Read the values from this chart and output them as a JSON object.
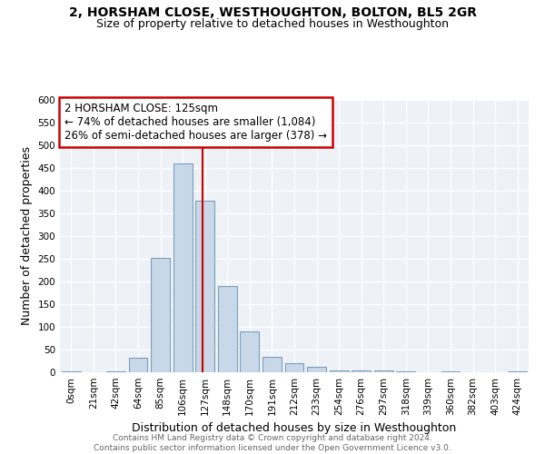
{
  "title": "2, HORSHAM CLOSE, WESTHOUGHTON, BOLTON, BL5 2GR",
  "subtitle": "Size of property relative to detached houses in Westhoughton",
  "xlabel": "Distribution of detached houses by size in Westhoughton",
  "ylabel": "Number of detached properties",
  "footnote1": "Contains HM Land Registry data © Crown copyright and database right 2024.",
  "footnote2": "Contains public sector information licensed under the Open Government Licence v3.0.",
  "annotation_line1": "2 HORSHAM CLOSE: 125sqm",
  "annotation_line2": "← 74% of detached houses are smaller (1,084)",
  "annotation_line3": "26% of semi-detached houses are larger (378) →",
  "bar_color": "#c8d8e8",
  "bar_edge_color": "#7aa0bc",
  "annotation_box_edge": "#cc0000",
  "annotation_box_fill": "white",
  "vline_color": "#cc0000",
  "bins": [
    "0sqm",
    "21sqm",
    "42sqm",
    "64sqm",
    "85sqm",
    "106sqm",
    "127sqm",
    "148sqm",
    "170sqm",
    "191sqm",
    "212sqm",
    "233sqm",
    "254sqm",
    "276sqm",
    "297sqm",
    "318sqm",
    "339sqm",
    "360sqm",
    "382sqm",
    "403sqm",
    "424sqm"
  ],
  "values": [
    3,
    0,
    3,
    33,
    252,
    460,
    378,
    190,
    90,
    35,
    20,
    12,
    5,
    5,
    4,
    3,
    0,
    3,
    0,
    0,
    3
  ],
  "bin_values_num": [
    0,
    21,
    42,
    64,
    85,
    106,
    127,
    148,
    170,
    191,
    212,
    233,
    254,
    276,
    297,
    318,
    339,
    360,
    382,
    403,
    424
  ],
  "ylim": [
    0,
    600
  ],
  "yticks": [
    0,
    50,
    100,
    150,
    200,
    250,
    300,
    350,
    400,
    450,
    500,
    550,
    600
  ],
  "property_sqm": 125,
  "background_color": "#eef2f7",
  "grid_color": "white",
  "title_fontsize": 10,
  "subtitle_fontsize": 9,
  "axis_label_fontsize": 9,
  "tick_fontsize": 7.5,
  "annotation_fontsize": 8.5
}
